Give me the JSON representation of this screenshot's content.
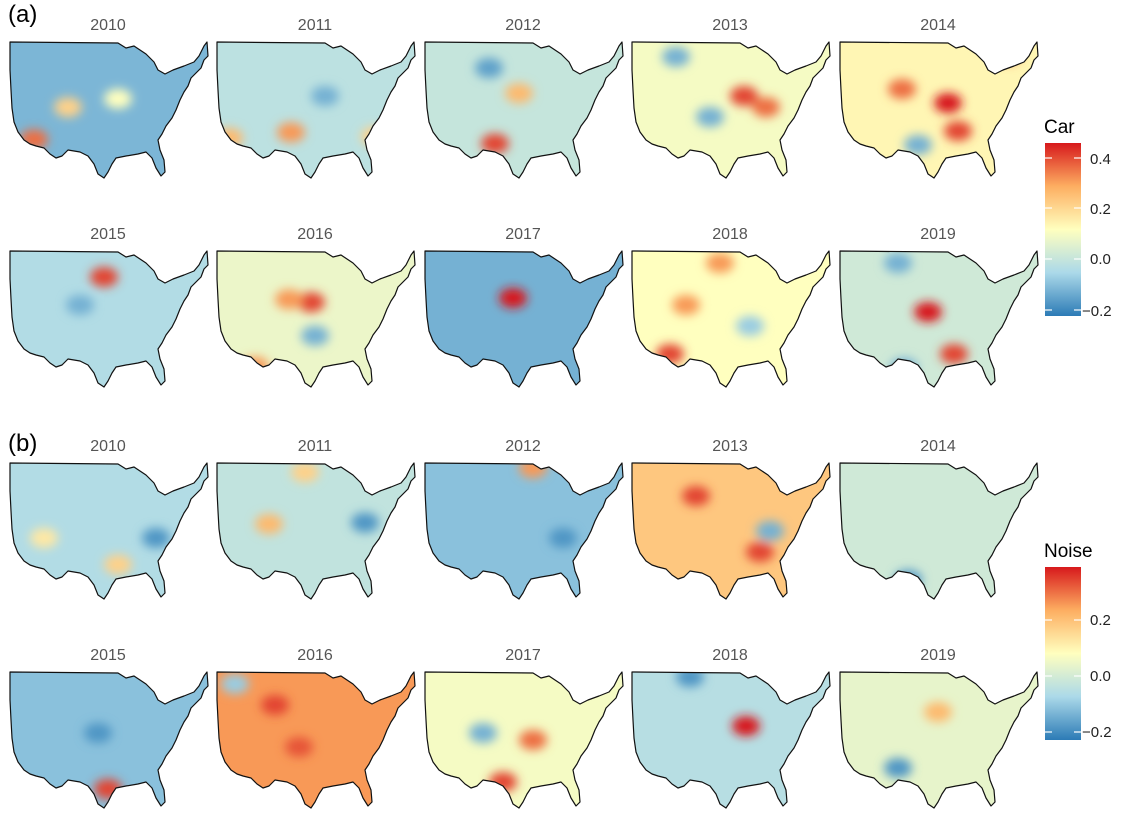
{
  "panels": [
    {
      "label": "(a)",
      "legend": {
        "title": "Car",
        "ticks": [
          "0.4",
          "0.2",
          "0.0",
          "−0.2"
        ]
      },
      "years": [
        "2010",
        "2011",
        "2012",
        "2013",
        "2014",
        "2015",
        "2016",
        "2017",
        "2018",
        "2019"
      ],
      "map_levels": [
        -0.14,
        -0.04,
        -0.02,
        0.08,
        0.12,
        -0.06,
        0.06,
        -0.15,
        0.1,
        0.0
      ],
      "hotspots": [
        [
          [
            0.13,
            0.71,
            0.35
          ],
          [
            0.3,
            0.48,
            0.2
          ],
          [
            0.55,
            0.42,
            0.1
          ]
        ],
        [
          [
            0.38,
            0.66,
            0.3
          ],
          [
            0.07,
            0.7,
            0.25
          ],
          [
            0.8,
            0.69,
            0.2
          ],
          [
            0.55,
            0.4,
            -0.15
          ]
        ],
        [
          [
            0.36,
            0.74,
            0.4
          ],
          [
            0.48,
            0.38,
            0.25
          ],
          [
            0.33,
            0.2,
            -0.18
          ]
        ],
        [
          [
            0.57,
            0.4,
            0.4
          ],
          [
            0.68,
            0.48,
            0.35
          ],
          [
            0.4,
            0.55,
            -0.15
          ],
          [
            0.23,
            0.12,
            -0.15
          ]
        ],
        [
          [
            0.55,
            0.45,
            0.45
          ],
          [
            0.6,
            0.65,
            0.4
          ],
          [
            0.32,
            0.35,
            0.35
          ],
          [
            0.4,
            0.75,
            -0.15
          ],
          [
            0.85,
            0.1,
            0.3
          ]
        ],
        [
          [
            0.48,
            0.2,
            0.4
          ],
          [
            0.36,
            0.4,
            -0.15
          ]
        ],
        [
          [
            0.48,
            0.38,
            0.4
          ],
          [
            0.37,
            0.36,
            0.3
          ],
          [
            0.2,
            0.84,
            0.3
          ],
          [
            0.5,
            0.62,
            -0.15
          ]
        ],
        [
          [
            0.45,
            0.35,
            0.45
          ]
        ],
        [
          [
            0.2,
            0.75,
            0.4
          ],
          [
            0.28,
            0.4,
            0.3
          ],
          [
            0.45,
            0.1,
            0.3
          ],
          [
            0.6,
            0.55,
            -0.1
          ]
        ],
        [
          [
            0.45,
            0.45,
            0.45
          ],
          [
            0.58,
            0.75,
            0.4
          ],
          [
            0.33,
            0.85,
            -0.15
          ],
          [
            0.3,
            0.1,
            -0.15
          ]
        ]
      ]
    },
    {
      "label": "(b)",
      "legend": {
        "title": "Noise",
        "ticks": [
          "0.2",
          "0.0",
          "−0.2"
        ]
      },
      "years": [
        "2010",
        "2011",
        "2012",
        "2013",
        "2014",
        "2015",
        "2016",
        "2017",
        "2018",
        "2019"
      ],
      "map_levels": [
        -0.06,
        -0.03,
        -0.12,
        0.22,
        0.0,
        -0.12,
        0.3,
        0.08,
        -0.05,
        0.05
      ],
      "hotspots": [
        [
          [
            0.74,
            0.55,
            -0.2
          ],
          [
            0.55,
            0.74,
            0.2
          ],
          [
            0.18,
            0.55,
            0.15
          ]
        ],
        [
          [
            0.27,
            0.45,
            0.25
          ],
          [
            0.75,
            0.44,
            -0.2
          ],
          [
            0.45,
            0.08,
            0.2
          ]
        ],
        [
          [
            0.55,
            0.05,
            0.3
          ],
          [
            0.7,
            0.55,
            -0.2
          ]
        ],
        [
          [
            0.33,
            0.25,
            0.4
          ],
          [
            0.65,
            0.65,
            0.4
          ],
          [
            0.7,
            0.5,
            -0.15
          ]
        ],
        [
          [
            0.35,
            0.85,
            -0.2
          ],
          [
            0.82,
            0.05,
            0.3
          ]
        ],
        [
          [
            0.5,
            0.85,
            0.4
          ],
          [
            0.45,
            0.45,
            -0.2
          ]
        ],
        [
          [
            0.3,
            0.25,
            0.4
          ],
          [
            0.1,
            0.1,
            -0.1
          ],
          [
            0.42,
            0.55,
            0.38
          ]
        ],
        [
          [
            0.4,
            0.8,
            0.4
          ],
          [
            0.55,
            0.5,
            0.35
          ],
          [
            0.3,
            0.45,
            -0.15
          ]
        ],
        [
          [
            0.58,
            0.4,
            0.45
          ],
          [
            0.3,
            0.05,
            -0.2
          ]
        ],
        [
          [
            0.3,
            0.7,
            -0.2
          ],
          [
            0.5,
            0.3,
            0.25
          ]
        ]
      ]
    }
  ],
  "colorscale": {
    "min": -0.25,
    "max": 0.45,
    "stops": [
      "#2c7bb6",
      "#abd9e9",
      "#ffffbf",
      "#fdae61",
      "#d7191c"
    ]
  }
}
